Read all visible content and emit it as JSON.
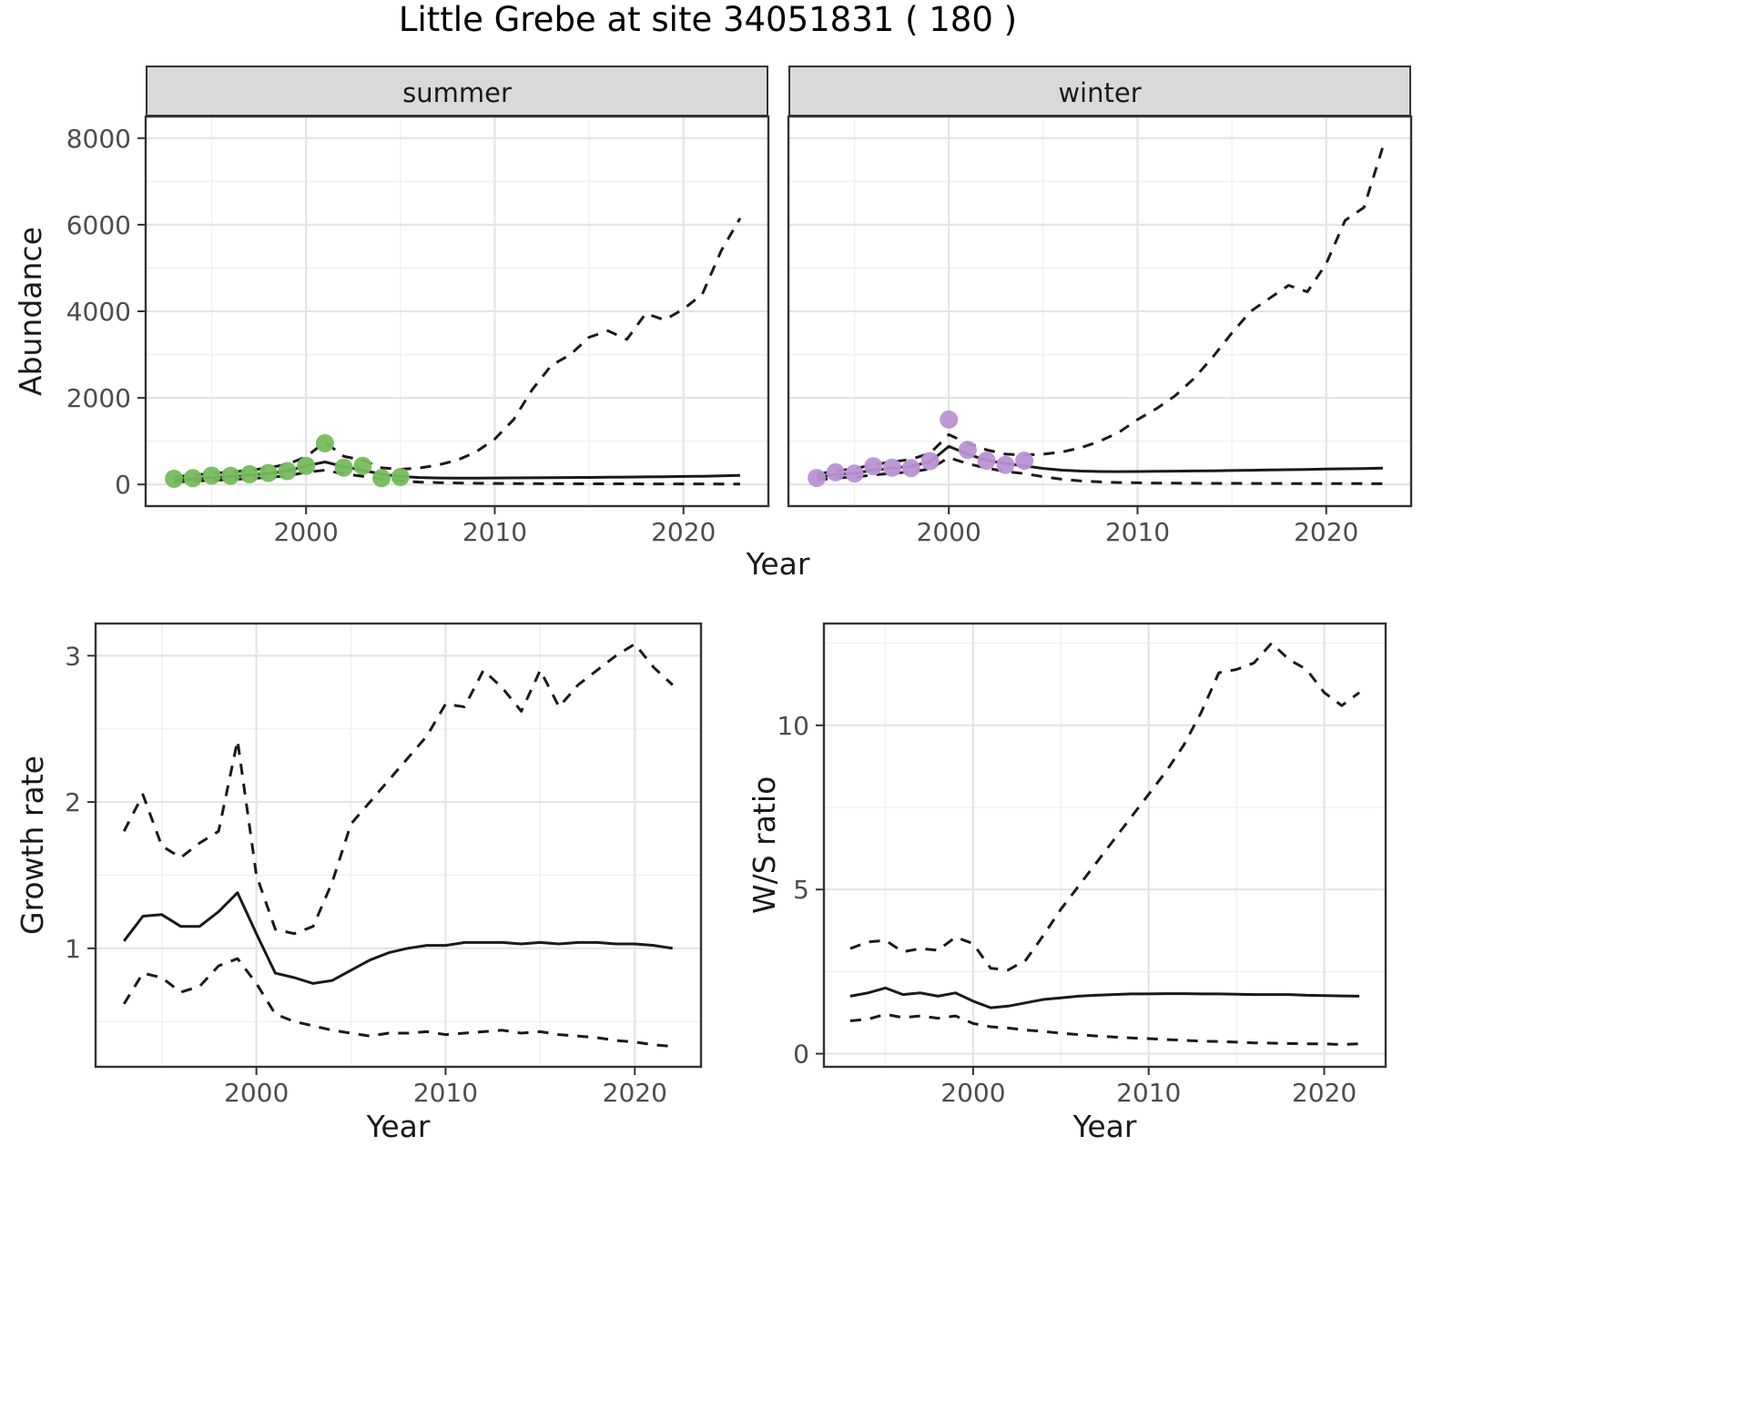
{
  "title": "Little Grebe at site 34051831 ( 180 )",
  "colors": {
    "line": "#1a1a1a",
    "grid_major": "#e4e4e4",
    "grid_minor": "#f0f0f0",
    "tick_mark": "#333333",
    "tick_label": "#4d4d4d",
    "panel_border": "#333333",
    "strip_bg": "#d9d9d9",
    "summer_points": "#76bc5d",
    "winter_points": "#b894d4"
  },
  "chart_data": [
    {
      "id": "abundance-summer",
      "type": "line",
      "facet": "summer",
      "xlabel": "Year",
      "ylabel": "Abundance",
      "xlim": [
        1991.5,
        2024.5
      ],
      "ylim": [
        -500,
        8500
      ],
      "xticks": [
        2000,
        2010,
        2020
      ],
      "yticks": [
        0,
        2000,
        4000,
        6000,
        8000
      ],
      "y_tick_labels": true,
      "grid": true,
      "years": [
        1993,
        1994,
        1995,
        1996,
        1997,
        1998,
        1999,
        2000,
        2001,
        2002,
        2003,
        2004,
        2005,
        2006,
        2007,
        2008,
        2009,
        2010,
        2011,
        2012,
        2013,
        2014,
        2015,
        2016,
        2017,
        2018,
        2019,
        2020,
        2021,
        2022,
        2023
      ],
      "series": [
        {
          "name": "fit_median",
          "style": "solid",
          "values": [
            110,
            130,
            160,
            185,
            215,
            255,
            310,
            430,
            520,
            410,
            330,
            235,
            185,
            160,
            150,
            148,
            148,
            150,
            152,
            155,
            158,
            160,
            163,
            166,
            170,
            175,
            180,
            185,
            190,
            198,
            210
          ]
        },
        {
          "name": "upper_ci",
          "style": "dashed",
          "values": [
            180,
            210,
            260,
            285,
            325,
            385,
            465,
            640,
            980,
            650,
            560,
            385,
            350,
            380,
            450,
            560,
            750,
            1050,
            1500,
            2200,
            2750,
            3000,
            3400,
            3550,
            3350,
            3950,
            3800,
            4050,
            4400,
            5400,
            6150
          ]
        },
        {
          "name": "lower_ci",
          "style": "dashed",
          "values": [
            60,
            75,
            95,
            115,
            135,
            165,
            200,
            280,
            330,
            245,
            190,
            125,
            80,
            55,
            42,
            34,
            28,
            24,
            21,
            19,
            18,
            17,
            16,
            15,
            15,
            14,
            14,
            13,
            13,
            12,
            12
          ]
        }
      ],
      "points": {
        "name": "observed_counts",
        "color": "#76bc5d",
        "years": [
          1993,
          1994,
          1995,
          1996,
          1997,
          1998,
          1999,
          2000,
          2001,
          2002,
          2003,
          2004,
          2005
        ],
        "values": [
          130,
          145,
          205,
          200,
          235,
          265,
          310,
          430,
          950,
          390,
          430,
          145,
          170
        ]
      }
    },
    {
      "id": "abundance-winter",
      "type": "line",
      "facet": "winter",
      "xlabel": "Year",
      "ylabel": "Abundance",
      "xlim": [
        1991.5,
        2024.5
      ],
      "ylim": [
        -500,
        8500
      ],
      "xticks": [
        2000,
        2010,
        2020
      ],
      "yticks": [
        0,
        2000,
        4000,
        6000,
        8000
      ],
      "y_tick_labels": false,
      "grid": true,
      "years": [
        1993,
        1994,
        1995,
        1996,
        1997,
        1998,
        1999,
        2000,
        2001,
        2002,
        2003,
        2004,
        2005,
        2006,
        2007,
        2008,
        2009,
        2010,
        2011,
        2012,
        2013,
        2014,
        2015,
        2016,
        2017,
        2018,
        2019,
        2020,
        2021,
        2022,
        2023
      ],
      "series": [
        {
          "name": "fit_median",
          "style": "solid",
          "values": [
            160,
            230,
            260,
            330,
            380,
            420,
            520,
            880,
            700,
            560,
            480,
            430,
            370,
            330,
            310,
            300,
            298,
            300,
            303,
            307,
            311,
            316,
            322,
            328,
            334,
            341,
            348,
            355,
            362,
            369,
            376
          ]
        },
        {
          "name": "upper_ci",
          "style": "dashed",
          "values": [
            230,
            320,
            360,
            460,
            520,
            580,
            720,
            1150,
            950,
            800,
            700,
            680,
            700,
            750,
            850,
            1000,
            1200,
            1500,
            1750,
            2050,
            2450,
            2950,
            3500,
            4000,
            4300,
            4600,
            4450,
            5100,
            6100,
            6400,
            7800
          ]
        },
        {
          "name": "lower_ci",
          "style": "dashed",
          "values": [
            100,
            150,
            170,
            220,
            260,
            290,
            360,
            620,
            480,
            380,
            300,
            250,
            180,
            120,
            80,
            60,
            45,
            38,
            33,
            30,
            28,
            26,
            25,
            24,
            23,
            22,
            21,
            20,
            20,
            19,
            18
          ]
        }
      ],
      "points": {
        "name": "observed_counts",
        "color": "#b894d4",
        "years": [
          1993,
          1994,
          1995,
          1996,
          1997,
          1998,
          1999,
          2000,
          2001,
          2002,
          2003,
          2004
        ],
        "values": [
          150,
          280,
          250,
          420,
          390,
          380,
          540,
          1500,
          800,
          550,
          450,
          550
        ]
      }
    },
    {
      "id": "growth-rate",
      "type": "line",
      "facet": "",
      "xlabel": "Year",
      "ylabel": "Growth rate",
      "xlim": [
        1991.5,
        2023.5
      ],
      "ylim": [
        0.19,
        3.22
      ],
      "xticks": [
        2000,
        2010,
        2020
      ],
      "yticks": [
        1,
        2,
        3
      ],
      "y_tick_labels": true,
      "grid": true,
      "years": [
        1993,
        1994,
        1995,
        1996,
        1997,
        1998,
        1999,
        2000,
        2001,
        2002,
        2003,
        2004,
        2005,
        2006,
        2007,
        2008,
        2009,
        2010,
        2011,
        2012,
        2013,
        2014,
        2015,
        2016,
        2017,
        2018,
        2019,
        2020,
        2021,
        2022
      ],
      "series": [
        {
          "name": "fit_median",
          "style": "solid",
          "values": [
            1.05,
            1.22,
            1.23,
            1.15,
            1.15,
            1.25,
            1.38,
            1.1,
            0.83,
            0.8,
            0.76,
            0.78,
            0.85,
            0.92,
            0.97,
            1.0,
            1.02,
            1.02,
            1.04,
            1.04,
            1.04,
            1.03,
            1.04,
            1.03,
            1.04,
            1.04,
            1.03,
            1.03,
            1.02,
            1.0
          ]
        },
        {
          "name": "upper_ci",
          "style": "dashed",
          "values": [
            1.8,
            2.05,
            1.7,
            1.62,
            1.72,
            1.8,
            2.42,
            1.5,
            1.13,
            1.1,
            1.15,
            1.45,
            1.85,
            2.0,
            2.15,
            2.3,
            2.45,
            2.67,
            2.65,
            2.9,
            2.78,
            2.62,
            2.9,
            2.65,
            2.8,
            2.9,
            3.0,
            3.08,
            2.92,
            2.8
          ]
        },
        {
          "name": "lower_ci",
          "style": "dashed",
          "values": [
            0.62,
            0.83,
            0.8,
            0.7,
            0.74,
            0.88,
            0.93,
            0.76,
            0.55,
            0.5,
            0.47,
            0.44,
            0.42,
            0.4,
            0.42,
            0.42,
            0.43,
            0.41,
            0.42,
            0.43,
            0.44,
            0.42,
            0.43,
            0.41,
            0.4,
            0.39,
            0.37,
            0.36,
            0.34,
            0.33
          ]
        }
      ]
    },
    {
      "id": "ws-ratio",
      "type": "line",
      "facet": "",
      "xlabel": "Year",
      "ylabel": "W/S ratio",
      "xlim": [
        1991.5,
        2023.5
      ],
      "ylim": [
        -0.4,
        13.1
      ],
      "xticks": [
        2000,
        2010,
        2020
      ],
      "yticks": [
        0,
        5,
        10
      ],
      "y_tick_labels": true,
      "grid": true,
      "years": [
        1993,
        1994,
        1995,
        1996,
        1997,
        1998,
        1999,
        2000,
        2001,
        2002,
        2003,
        2004,
        2005,
        2006,
        2007,
        2008,
        2009,
        2010,
        2011,
        2012,
        2013,
        2014,
        2015,
        2016,
        2017,
        2018,
        2019,
        2020,
        2021,
        2022
      ],
      "series": [
        {
          "name": "fit_median",
          "style": "solid",
          "values": [
            1.75,
            1.85,
            2.0,
            1.8,
            1.85,
            1.75,
            1.85,
            1.6,
            1.4,
            1.45,
            1.55,
            1.65,
            1.7,
            1.75,
            1.78,
            1.8,
            1.82,
            1.82,
            1.83,
            1.83,
            1.82,
            1.82,
            1.81,
            1.8,
            1.8,
            1.8,
            1.78,
            1.77,
            1.76,
            1.75
          ]
        },
        {
          "name": "upper_ci",
          "style": "dashed",
          "values": [
            3.2,
            3.4,
            3.45,
            3.1,
            3.2,
            3.15,
            3.55,
            3.35,
            2.6,
            2.55,
            2.85,
            3.6,
            4.4,
            5.1,
            5.8,
            6.5,
            7.2,
            7.9,
            8.6,
            9.4,
            10.4,
            11.6,
            11.7,
            11.9,
            12.5,
            12.0,
            11.7,
            11.0,
            10.6,
            11.0
          ]
        },
        {
          "name": "lower_ci",
          "style": "dashed",
          "values": [
            1.0,
            1.05,
            1.2,
            1.1,
            1.15,
            1.08,
            1.15,
            0.92,
            0.82,
            0.78,
            0.72,
            0.68,
            0.62,
            0.58,
            0.54,
            0.51,
            0.48,
            0.46,
            0.43,
            0.41,
            0.38,
            0.37,
            0.35,
            0.33,
            0.32,
            0.31,
            0.3,
            0.3,
            0.28,
            0.3
          ]
        }
      ]
    }
  ]
}
